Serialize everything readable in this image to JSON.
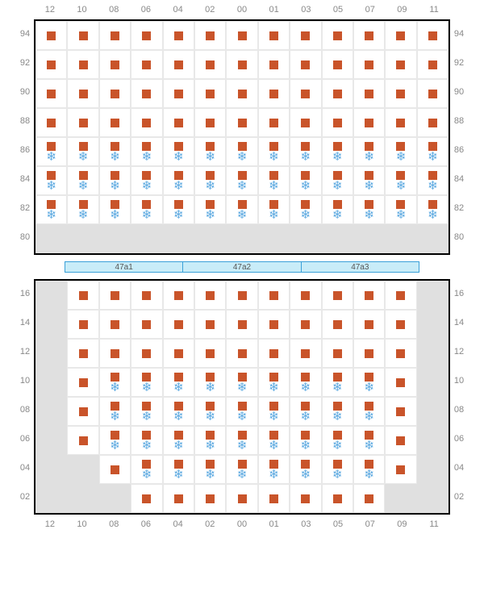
{
  "colors": {
    "square": "#c9542a",
    "snowflake": "#5aa8e0",
    "blank_cell": "#e0e0e0",
    "border": "#e8e8e8",
    "frame": "#000000",
    "rack_bg": "#c8ecf8",
    "rack_border": "#3aa0d8",
    "label": "#888888"
  },
  "col_labels": [
    "12",
    "10",
    "08",
    "06",
    "04",
    "02",
    "00",
    "01",
    "03",
    "05",
    "07",
    "09",
    "11"
  ],
  "top_rows": [
    "94",
    "92",
    "90",
    "88",
    "86",
    "84",
    "82",
    "80"
  ],
  "bottom_rows": [
    "16",
    "14",
    "12",
    "10",
    "08",
    "06",
    "04",
    "02"
  ],
  "rack_labels": [
    "47a1",
    "47a2",
    "47a3"
  ],
  "top_section": [
    [
      "S",
      "S",
      "S",
      "S",
      "S",
      "S",
      "S",
      "S",
      "S",
      "S",
      "S",
      "S",
      "S"
    ],
    [
      "S",
      "S",
      "S",
      "S",
      "S",
      "S",
      "S",
      "S",
      "S",
      "S",
      "S",
      "S",
      "S"
    ],
    [
      "S",
      "S",
      "S",
      "S",
      "S",
      "S",
      "S",
      "S",
      "S",
      "S",
      "S",
      "S",
      "S"
    ],
    [
      "S",
      "S",
      "S",
      "S",
      "S",
      "S",
      "S",
      "S",
      "S",
      "S",
      "S",
      "S",
      "S"
    ],
    [
      "SF",
      "SF",
      "SF",
      "SF",
      "SF",
      "SF",
      "SF",
      "SF",
      "SF",
      "SF",
      "SF",
      "SF",
      "SF"
    ],
    [
      "SF",
      "SF",
      "SF",
      "SF",
      "SF",
      "SF",
      "SF",
      "SF",
      "SF",
      "SF",
      "SF",
      "SF",
      "SF"
    ],
    [
      "SF",
      "SF",
      "SF",
      "SF",
      "SF",
      "SF",
      "SF",
      "SF",
      "SF",
      "SF",
      "SF",
      "SF",
      "SF"
    ],
    [
      "B",
      "B",
      "B",
      "B",
      "B",
      "B",
      "B",
      "B",
      "B",
      "B",
      "B",
      "B",
      "B"
    ]
  ],
  "bottom_section": [
    [
      "B",
      "S",
      "S",
      "S",
      "S",
      "S",
      "S",
      "S",
      "S",
      "S",
      "S",
      "S",
      "B"
    ],
    [
      "B",
      "S",
      "S",
      "S",
      "S",
      "S",
      "S",
      "S",
      "S",
      "S",
      "S",
      "S",
      "B"
    ],
    [
      "B",
      "S",
      "S",
      "S",
      "S",
      "S",
      "S",
      "S",
      "S",
      "S",
      "S",
      "S",
      "B"
    ],
    [
      "B",
      "S",
      "SF",
      "SF",
      "SF",
      "SF",
      "SF",
      "SF",
      "SF",
      "SF",
      "SF",
      "S",
      "B"
    ],
    [
      "B",
      "S",
      "SF",
      "SF",
      "SF",
      "SF",
      "SF",
      "SF",
      "SF",
      "SF",
      "SF",
      "S",
      "B"
    ],
    [
      "B",
      "S",
      "SF",
      "SF",
      "SF",
      "SF",
      "SF",
      "SF",
      "SF",
      "SF",
      "SF",
      "S",
      "B"
    ],
    [
      "B",
      "B",
      "S",
      "SF",
      "SF",
      "SF",
      "SF",
      "SF",
      "SF",
      "SF",
      "SF",
      "S",
      "B"
    ],
    [
      "B",
      "B",
      "B",
      "S",
      "S",
      "S",
      "S",
      "S",
      "S",
      "S",
      "S",
      "B",
      "B"
    ]
  ],
  "legend": {
    "S": "square-only",
    "SF": "square-with-snowflake",
    "B": "blank"
  }
}
